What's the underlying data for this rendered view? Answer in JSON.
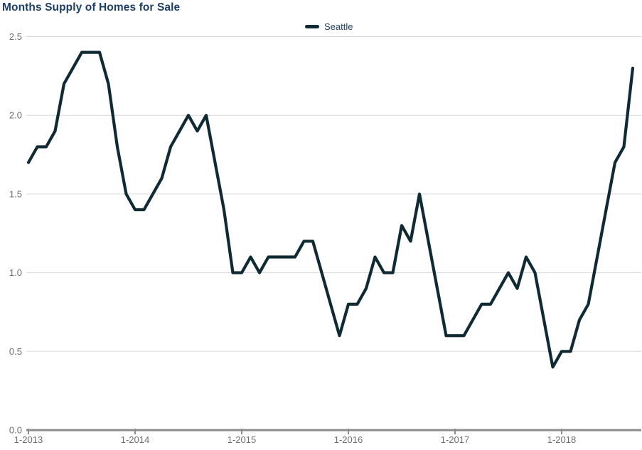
{
  "page": {
    "background": "#ffffff"
  },
  "header": {
    "title": "Months Supply of Homes for Sale"
  },
  "legend": {
    "position": "top-center",
    "items": [
      {
        "label": "Seattle",
        "swatch_color": "#0f2a33"
      }
    ]
  },
  "colors": {
    "title_text": "#1d3f66",
    "legend_text": "#1d3f66",
    "series_line": "#0f2a33",
    "gridline": "#d9d9d9",
    "axis_line": "#8c8c8c",
    "axis_text": "#6f6f6f"
  },
  "chart_data": {
    "type": "line",
    "title": "Months Supply of Homes for Sale",
    "xlabel": "",
    "ylabel": "",
    "x_frequency": "monthly",
    "x_start_label": "1-2013",
    "x_tick_labels": [
      "1-2013",
      "1-2014",
      "1-2015",
      "1-2016",
      "1-2017",
      "1-2018"
    ],
    "x_tick_month_index": [
      0,
      12,
      24,
      36,
      48,
      60
    ],
    "y_ticks": [
      0,
      0.5,
      1,
      1.5,
      2,
      2.5
    ],
    "y_tick_labels": [
      "0.0",
      "0.5",
      "1.0",
      "1.5",
      "2.0",
      "2.5"
    ],
    "ylim": [
      0,
      2.5
    ],
    "grid": "horizontal-only",
    "legend_position": "top-center",
    "series": [
      {
        "name": "Seattle",
        "color": "#0f2a33",
        "values": [
          1.7,
          1.8,
          1.8,
          1.9,
          2.2,
          2.3,
          2.4,
          2.4,
          2.4,
          2.2,
          1.8,
          1.5,
          1.4,
          1.4,
          1.5,
          1.6,
          1.8,
          1.9,
          2.0,
          1.9,
          2.0,
          1.7,
          1.4,
          1.0,
          1.0,
          1.1,
          1.0,
          1.1,
          1.1,
          1.1,
          1.1,
          1.2,
          1.2,
          1.0,
          0.8,
          0.6,
          0.8,
          0.8,
          0.9,
          1.1,
          1.0,
          1.0,
          1.3,
          1.2,
          1.5,
          1.2,
          0.9,
          0.6,
          0.6,
          0.6,
          0.7,
          0.8,
          0.8,
          0.9,
          1.0,
          0.9,
          1.1,
          1.0,
          0.7,
          0.4,
          0.5,
          0.5,
          0.7,
          0.8,
          1.1,
          1.4,
          1.7,
          1.8,
          2.3
        ]
      }
    ]
  }
}
